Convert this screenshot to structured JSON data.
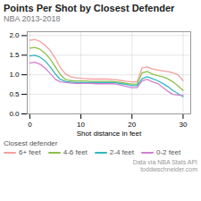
{
  "chart_data": {
    "type": "line",
    "title": "Points Per Shot by Closest Defender",
    "subtitle": "NBA 2013-2018",
    "xlabel": "Shot distance in feet",
    "x": [
      0,
      1,
      2,
      3,
      4,
      5,
      6,
      7,
      8,
      9,
      10,
      11,
      12,
      13,
      14,
      15,
      16,
      17,
      18,
      19,
      20,
      21,
      22,
      23,
      24,
      25,
      26,
      27,
      28,
      29,
      30
    ],
    "series": [
      {
        "name": "6+ feet",
        "color": "#f4a0a0",
        "values": [
          1.88,
          1.9,
          1.85,
          1.75,
          1.62,
          1.42,
          1.18,
          1.02,
          0.95,
          0.92,
          0.91,
          0.9,
          0.89,
          0.89,
          0.89,
          0.89,
          0.88,
          0.87,
          0.85,
          0.83,
          0.82,
          0.82,
          1.18,
          1.2,
          1.15,
          1.12,
          1.1,
          1.08,
          1.05,
          1.0,
          0.85
        ]
      },
      {
        "name": "4-6 feet",
        "color": "#8dc04a",
        "values": [
          1.68,
          1.7,
          1.65,
          1.55,
          1.4,
          1.2,
          1.0,
          0.88,
          0.85,
          0.84,
          0.84,
          0.84,
          0.83,
          0.83,
          0.83,
          0.83,
          0.83,
          0.82,
          0.8,
          0.78,
          0.76,
          0.76,
          1.05,
          1.08,
          1.02,
          0.98,
          0.95,
          0.9,
          0.82,
          0.72,
          0.6
        ]
      },
      {
        "name": "2-4 feet",
        "color": "#30b8c0",
        "values": [
          1.48,
          1.5,
          1.45,
          1.35,
          1.2,
          1.02,
          0.88,
          0.83,
          0.81,
          0.8,
          0.8,
          0.8,
          0.8,
          0.8,
          0.8,
          0.8,
          0.8,
          0.79,
          0.77,
          0.75,
          0.72,
          0.72,
          0.9,
          0.95,
          0.9,
          0.85,
          0.78,
          0.7,
          0.6,
          0.52,
          0.44
        ]
      },
      {
        "name": "0-2 feet",
        "color": "#d080d0",
        "values": [
          1.3,
          1.32,
          1.27,
          1.17,
          1.03,
          0.88,
          0.82,
          0.8,
          0.79,
          0.78,
          0.78,
          0.78,
          0.78,
          0.77,
          0.77,
          0.77,
          0.77,
          0.76,
          0.73,
          0.7,
          0.67,
          0.67,
          0.85,
          0.88,
          0.82,
          0.78,
          0.68,
          0.58,
          0.5,
          0.48,
          0.47
        ]
      }
    ],
    "xlim": [
      -0.5,
      31.5
    ],
    "xticks": [
      0,
      10,
      20,
      30
    ],
    "ylim": [
      0.0,
      2.1
    ],
    "yticks": [
      {
        "value": 0,
        "label": "0.0"
      },
      0.5,
      {
        "value": 1,
        "label": "1.0"
      },
      1.5,
      {
        "value": 2,
        "label": "2.0"
      }
    ],
    "grid": true,
    "legend": "bottom",
    "legend_title": "Closest defender",
    "annotations": [
      "Data via NBA Stats API\ntoddwschneider.com"
    ]
  }
}
